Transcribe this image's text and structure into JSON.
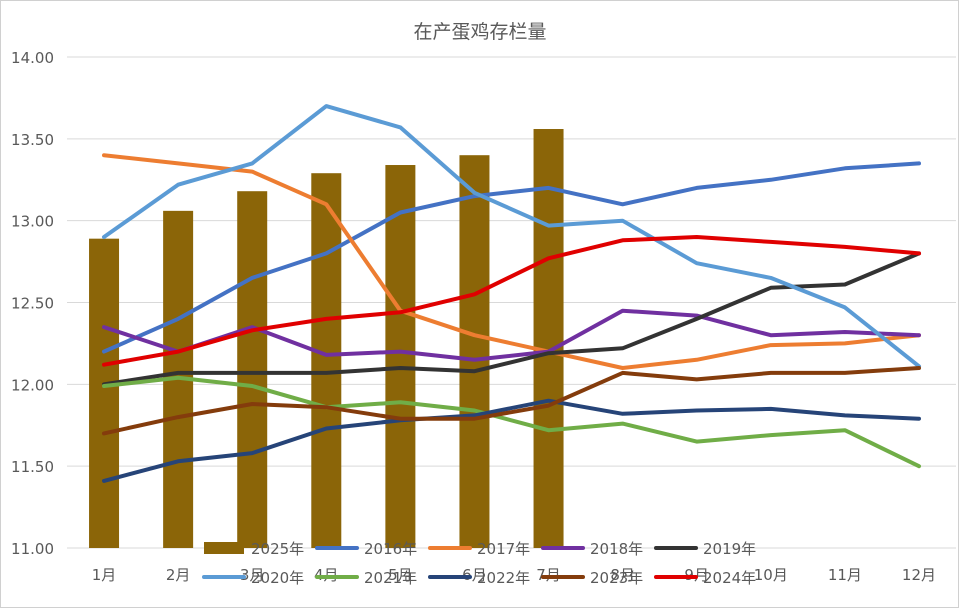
{
  "chart_data": {
    "type": "bar+line",
    "title": "在产蛋鸡存栏量",
    "categories": [
      "1月",
      "2月",
      "3月",
      "4月",
      "5月",
      "6月",
      "7月",
      "8月",
      "9月",
      "10月",
      "11月",
      "12月"
    ],
    "ylim": [
      11.0,
      14.0
    ],
    "yticks": [
      "11.00",
      "11.50",
      "12.00",
      "12.50",
      "13.00",
      "13.50",
      "14.00"
    ],
    "grid": true,
    "legend_position": "bottom",
    "bars": {
      "name": "2025年",
      "color": "#8B6508",
      "values": [
        12.89,
        13.06,
        13.18,
        13.29,
        13.34,
        13.4,
        13.56,
        null,
        null,
        null,
        null,
        null
      ]
    },
    "series": [
      {
        "name": "2016年",
        "color": "#4472C4",
        "values": [
          12.2,
          12.4,
          12.65,
          12.8,
          13.05,
          13.15,
          13.2,
          13.1,
          13.2,
          13.25,
          13.32,
          13.35
        ]
      },
      {
        "name": "2017年",
        "color": "#ED7D31",
        "values": [
          13.4,
          13.35,
          13.3,
          13.1,
          12.45,
          12.3,
          12.2,
          12.1,
          12.15,
          12.24,
          12.25,
          12.3
        ]
      },
      {
        "name": "2018年",
        "color": "#7030A0",
        "values": [
          12.35,
          12.2,
          12.35,
          12.18,
          12.2,
          12.15,
          12.2,
          12.45,
          12.42,
          12.3,
          12.32,
          12.3
        ]
      },
      {
        "name": "2019年",
        "color": "#333333",
        "values": [
          12.0,
          12.07,
          12.07,
          12.07,
          12.1,
          12.08,
          12.19,
          12.22,
          12.4,
          12.59,
          12.61,
          12.8
        ]
      },
      {
        "name": "2020年",
        "color": "#5B9BD5",
        "values": [
          12.9,
          13.22,
          13.35,
          13.7,
          13.57,
          13.17,
          12.97,
          13.0,
          12.74,
          12.65,
          12.47,
          12.11
        ]
      },
      {
        "name": "2021年",
        "color": "#70AD47",
        "values": [
          11.99,
          12.04,
          11.99,
          11.86,
          11.89,
          11.84,
          11.72,
          11.76,
          11.65,
          11.69,
          11.72,
          11.5
        ]
      },
      {
        "name": "2022年",
        "color": "#264478",
        "values": [
          11.41,
          11.53,
          11.58,
          11.73,
          11.78,
          11.81,
          11.9,
          11.82,
          11.84,
          11.85,
          11.81,
          11.79
        ]
      },
      {
        "name": "2023年",
        "color": "#843C0C",
        "values": [
          11.7,
          11.8,
          11.88,
          11.86,
          11.79,
          11.79,
          11.87,
          12.07,
          12.03,
          12.07,
          12.07,
          12.1
        ]
      },
      {
        "name": "2024年",
        "color": "#E00000",
        "values": [
          12.12,
          12.2,
          12.33,
          12.4,
          12.44,
          12.55,
          12.77,
          12.88,
          12.9,
          12.87,
          12.84,
          12.8
        ]
      }
    ]
  }
}
